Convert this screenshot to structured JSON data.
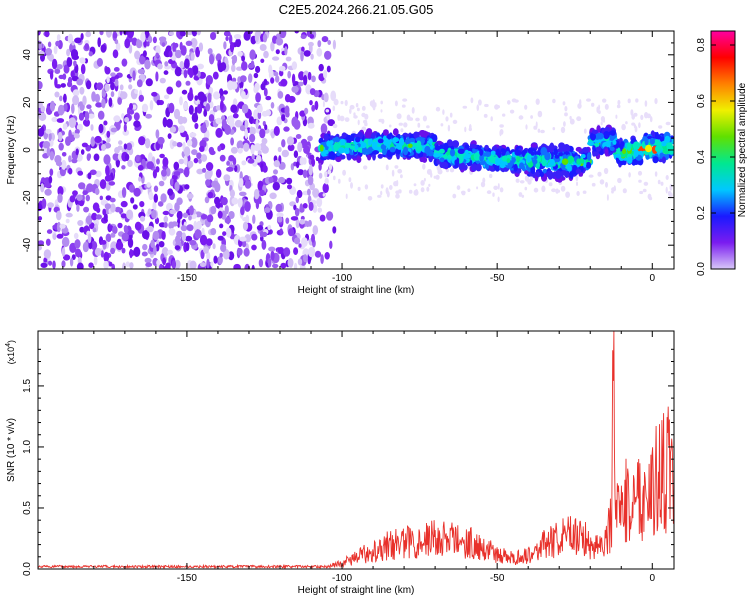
{
  "title": "C2E5.2024.266.21.05.G05",
  "chart_data": [
    {
      "type": "heatmap",
      "xlabel": "Height of straight line (km)",
      "ylabel": "Frequency (Hz)",
      "xlim": [
        -198,
        7
      ],
      "ylim": [
        -50,
        50
      ],
      "xticks": [
        -150,
        -100,
        -50,
        0
      ],
      "yticks": [
        -40,
        -20,
        0,
        20,
        40
      ],
      "colorbar": {
        "label": "Normalized spectral amplitude",
        "range": [
          0.0,
          0.85
        ],
        "ticks": [
          "0.0",
          "0.2",
          "0.4",
          "0.6",
          "0.8"
        ],
        "colors": [
          "#d8c8f8",
          "#7a1cf0",
          "#1a1aff",
          "#00c8ff",
          "#00e890",
          "#60e000",
          "#f0f000",
          "#ff8000",
          "#ff0000",
          "#ff00a0"
        ]
      },
      "description_regions": [
        {
          "x_range": [
            -198,
            -107
          ],
          "freq_range": [
            -50,
            50
          ],
          "amplitude": "low noise, purple"
        },
        {
          "x_range": [
            -107,
            7
          ],
          "freq_range": [
            -8,
            8
          ],
          "amplitude": "signal band centered near 0 Hz, blue to green with red near x=0"
        }
      ]
    },
    {
      "type": "line",
      "xlabel": "Height of straight line (km)",
      "ylabel": "SNR (10 * v/v)",
      "y_multiplier": "(x10",
      "y_multiplier_exp": "4",
      "y_multiplier_close": ")",
      "xlim": [
        -198,
        7
      ],
      "ylim": [
        0,
        1.95
      ],
      "xticks": [
        -150,
        -100,
        -50,
        0
      ],
      "yticks": [
        "0.0",
        "0.5",
        "1.0",
        "1.5"
      ],
      "color": "#e8302a",
      "series": [
        {
          "x": [
            -198,
            -150,
            -105,
            -100,
            -95,
            -90,
            -85,
            -80,
            -75,
            -70,
            -65,
            -60,
            -55,
            -50,
            -45,
            -40,
            -35,
            -30,
            -25,
            -20,
            -16,
            -13,
            -12.5,
            -12,
            -10,
            -5,
            0,
            5,
            7
          ],
          "y": [
            0.02,
            0.02,
            0.02,
            0.05,
            0.1,
            0.16,
            0.2,
            0.22,
            0.24,
            0.26,
            0.25,
            0.23,
            0.19,
            0.12,
            0.09,
            0.12,
            0.2,
            0.25,
            0.3,
            0.22,
            0.2,
            0.4,
            1.95,
            0.4,
            0.55,
            0.6,
            0.7,
            0.85,
            0.8
          ]
        }
      ]
    }
  ]
}
